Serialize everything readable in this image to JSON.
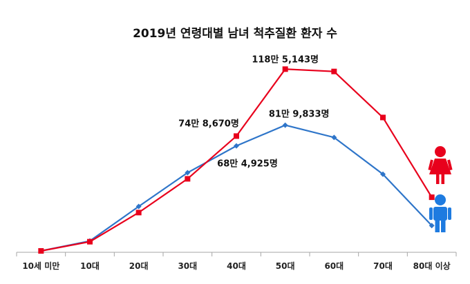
{
  "chart_data": {
    "type": "line",
    "title": "2019년 연령대별 남녀 척추질환 환자 수",
    "categories": [
      "10세 미만",
      "10대",
      "20대",
      "30대",
      "40대",
      "50대",
      "60대",
      "70대",
      "80대 이상"
    ],
    "series": [
      {
        "key": "female",
        "color": "#e8001c",
        "marker": "square",
        "values": [
          0,
          60000,
          250000,
          470000,
          748670,
          1185143,
          1170000,
          870000,
          350000
        ]
      },
      {
        "key": "male",
        "color": "#2e75c9",
        "marker": "diamond",
        "values": [
          0,
          65000,
          290000,
          510000,
          684925,
          819833,
          740000,
          500000,
          165000
        ]
      }
    ],
    "annotations": [
      {
        "text": "118만 5,143명",
        "series": "female",
        "category": "50대"
      },
      {
        "text": "74만 8,670명",
        "series": "female",
        "category": "40대"
      },
      {
        "text": "81만 9,833명",
        "series": "male",
        "category": "50대"
      },
      {
        "text": "68만 4,925명",
        "series": "male",
        "category": "40대"
      }
    ],
    "ylim": [
      0,
      1200000
    ],
    "legend": "right, gender icons (female red, male blue)",
    "grid": false
  }
}
